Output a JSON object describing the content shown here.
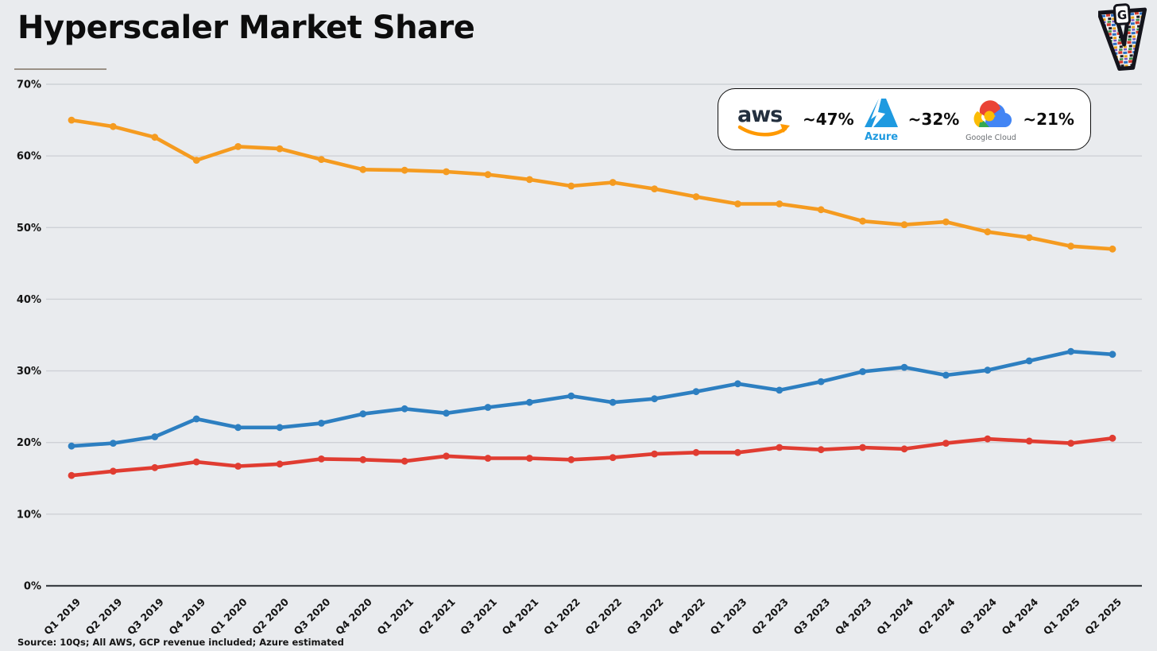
{
  "page": {
    "title": "Hyperscaler Market Share",
    "source_note": "Source: 10Qs; All AWS, GCP revenue included; Azure estimated"
  },
  "brand_logo": {
    "letter": "V",
    "badge": "G"
  },
  "legend": {
    "items": [
      {
        "name": "AWS",
        "logo_text": "aws",
        "value_label": "~47%"
      },
      {
        "name": "Azure",
        "logo_text": "Azure",
        "value_label": "~32%"
      },
      {
        "name": "Google Cloud",
        "logo_text": "Google Cloud",
        "value_label": "~21%"
      }
    ]
  },
  "chart_data": {
    "type": "line",
    "title": "Hyperscaler Market Share",
    "x": [
      "Q1 2019",
      "Q2 2019",
      "Q3 2019",
      "Q4 2019",
      "Q1 2020",
      "Q2 2020",
      "Q3 2020",
      "Q4 2020",
      "Q1 2021",
      "Q2 2021",
      "Q3 2021",
      "Q4 2021",
      "Q1 2022",
      "Q2 2022",
      "Q3 2022",
      "Q4 2022",
      "Q1 2023",
      "Q2 2023",
      "Q3 2023",
      "Q4 2023",
      "Q1 2024",
      "Q2 2024",
      "Q3 2024",
      "Q4 2024",
      "Q1 2025",
      "Q2 2025"
    ],
    "series": [
      {
        "name": "AWS",
        "color": "#f59b20",
        "values": [
          65.0,
          64.1,
          62.6,
          59.4,
          61.3,
          61.0,
          59.5,
          58.1,
          58.0,
          57.8,
          57.4,
          56.7,
          55.8,
          56.3,
          55.4,
          54.3,
          53.3,
          53.3,
          52.5,
          50.9,
          50.4,
          50.8,
          49.4,
          48.6,
          47.4,
          47.0
        ]
      },
      {
        "name": "Azure",
        "color": "#2d7fc1",
        "values": [
          19.5,
          19.9,
          20.8,
          23.3,
          22.1,
          22.1,
          22.7,
          24.0,
          24.7,
          24.1,
          24.9,
          25.6,
          26.5,
          25.6,
          26.1,
          27.1,
          28.2,
          27.3,
          28.5,
          29.9,
          30.5,
          29.4,
          30.1,
          31.4,
          32.7,
          32.3
        ]
      },
      {
        "name": "Google Cloud",
        "color": "#e03c31",
        "values": [
          15.4,
          16.0,
          16.5,
          17.3,
          16.7,
          17.0,
          17.7,
          17.6,
          17.4,
          18.1,
          17.8,
          17.8,
          17.6,
          17.9,
          18.4,
          18.6,
          18.6,
          19.3,
          19.0,
          19.3,
          19.1,
          19.9,
          20.5,
          20.2,
          19.9,
          20.6
        ]
      }
    ],
    "xlabel": "",
    "ylabel": "",
    "ylim": [
      0,
      70
    ],
    "yticks": [
      0,
      10,
      20,
      30,
      40,
      50,
      60,
      70
    ],
    "ytick_suffix": "%",
    "grid": "horizontal",
    "legend_position": "top-right",
    "colors": {
      "background": "#e9ebee",
      "gridline": "#ced1d6",
      "axis": "#3c4046"
    }
  }
}
